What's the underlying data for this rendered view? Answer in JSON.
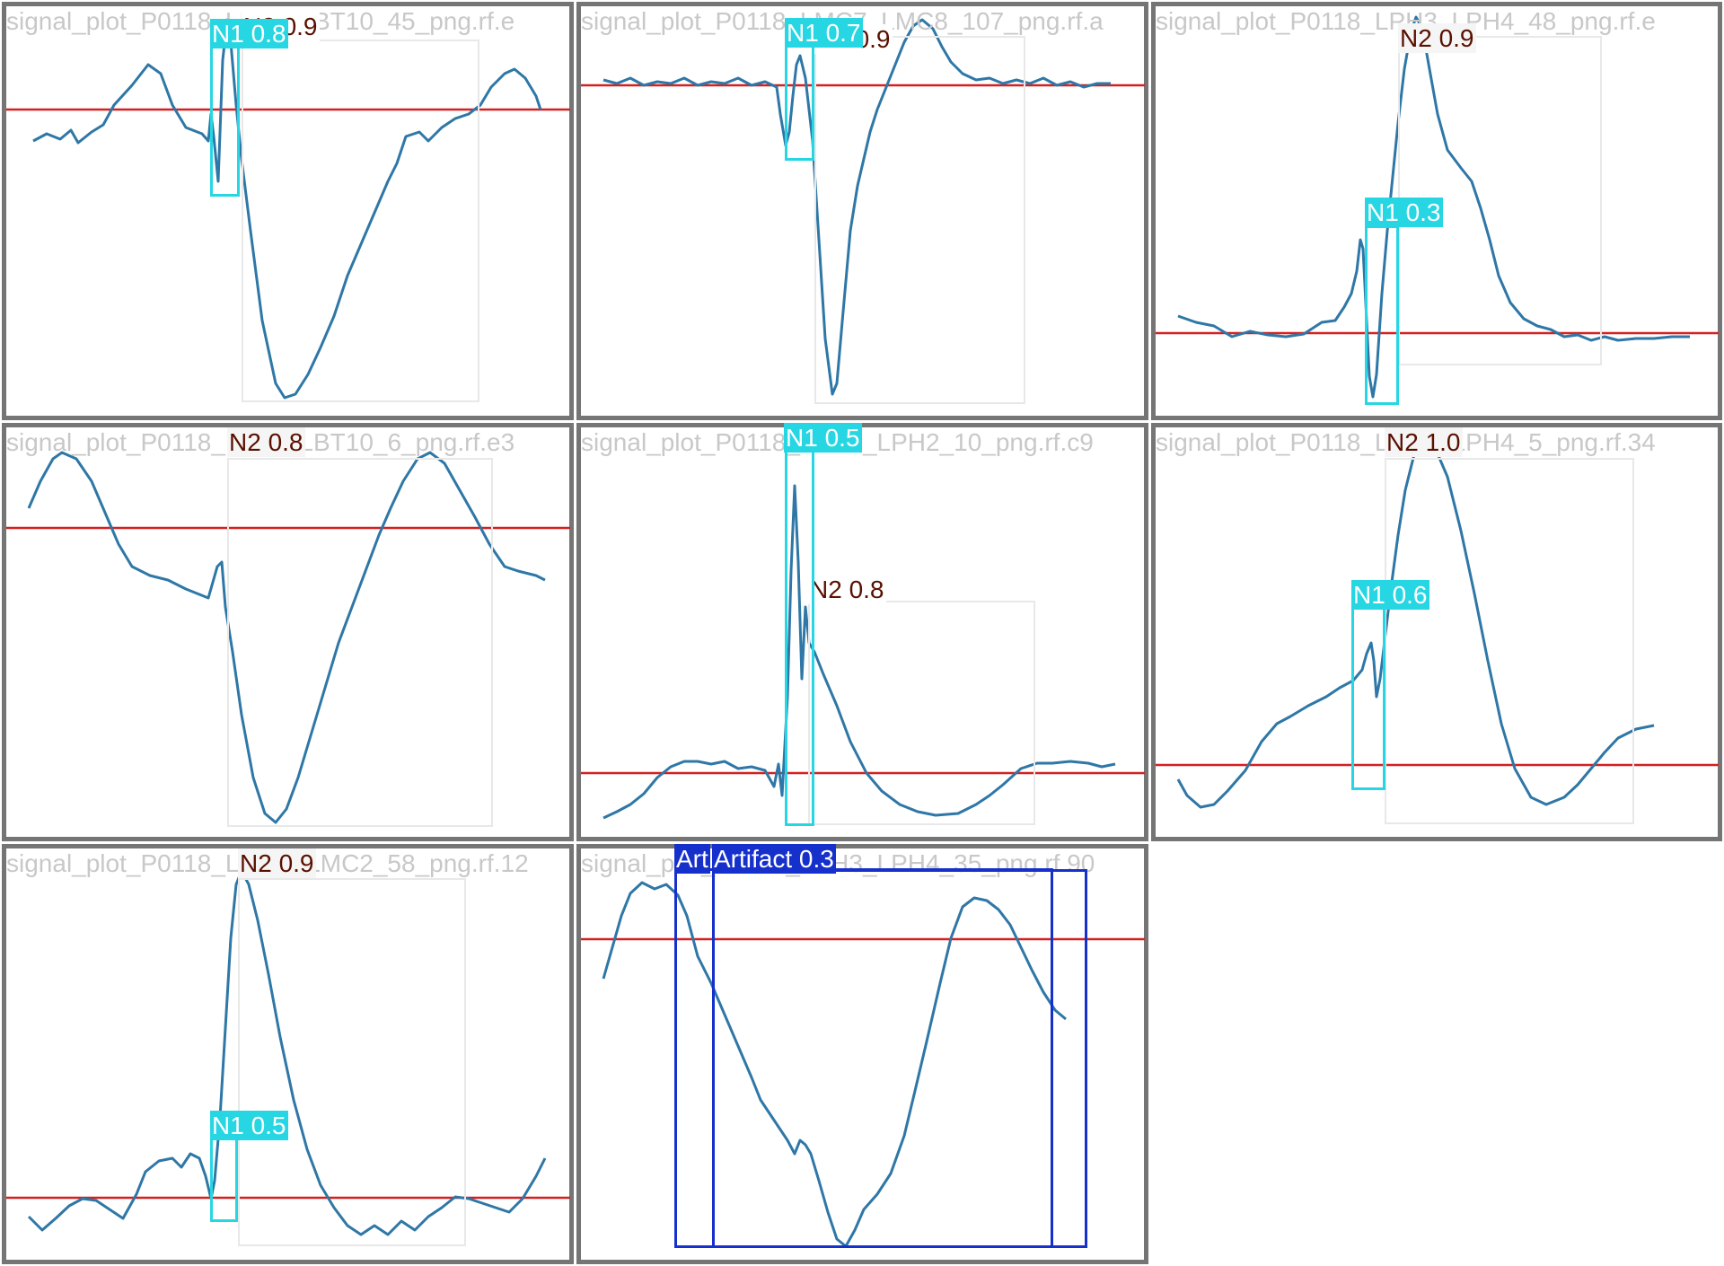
{
  "colors": {
    "panel_border": "#757575",
    "signal": "#2e77a6",
    "baseline": "#d42020",
    "n1": "#27d6e3",
    "n1_text": "#ffffff",
    "n2": "#e8e8e8",
    "n2_text": "#5a1000",
    "artifact": "#1630cc",
    "artifact_text": "#ffffff",
    "filename_text": "#c8c8c8"
  },
  "panels": [
    {
      "filename": "signal_plot_P0118_LBT9_LBT10_45_png.rf.e",
      "detections": [
        {
          "label": "N2 0.9",
          "kind": "n2"
        },
        {
          "label": "N1 0.8",
          "kind": "n1"
        }
      ]
    },
    {
      "filename": "signal_plot_P0118_LMC7_LMC8_107_png.rf.a",
      "detections": [
        {
          "label": "N2 0.9",
          "kind": "n2"
        },
        {
          "label": "N1 0.7",
          "kind": "n1"
        }
      ]
    },
    {
      "filename": "signal_plot_P0118_LPH3_LPH4_48_png.rf.e",
      "detections": [
        {
          "label": "N2 0.9",
          "kind": "n2"
        },
        {
          "label": "N1 0.3",
          "kind": "n1"
        }
      ]
    },
    {
      "filename": "signal_plot_P0118_LBT9_LBT10_6_png.rf.e3",
      "detections": [
        {
          "label": "N2 0.8",
          "kind": "n2"
        }
      ]
    },
    {
      "filename": "signal_plot_P0118_LPH1_LPH2_10_png.rf.c9",
      "detections": [
        {
          "label": "N2 0.8",
          "kind": "n2"
        },
        {
          "label": "N1 0.5",
          "kind": "n1"
        }
      ]
    },
    {
      "filename": "signal_plot_P0118_LPH3_LPH4_5_png.rf.34",
      "detections": [
        {
          "label": "N2 1.0",
          "kind": "n2"
        },
        {
          "label": "N1 0.6",
          "kind": "n1"
        }
      ]
    },
    {
      "filename": "signal_plot_P0118_LMC1_LMC2_58_png.rf.12",
      "detections": [
        {
          "label": "N2 0.9",
          "kind": "n2"
        },
        {
          "label": "N1 0.5",
          "kind": "n1"
        }
      ]
    },
    {
      "filename": "signal_plot_P0118_LPH3_LPH4_35_png.rf.90",
      "detections": [
        {
          "label": "Artifact 0.3",
          "kind": "artifact"
        },
        {
          "label": "Art",
          "kind": "artifact"
        }
      ]
    }
  ]
}
